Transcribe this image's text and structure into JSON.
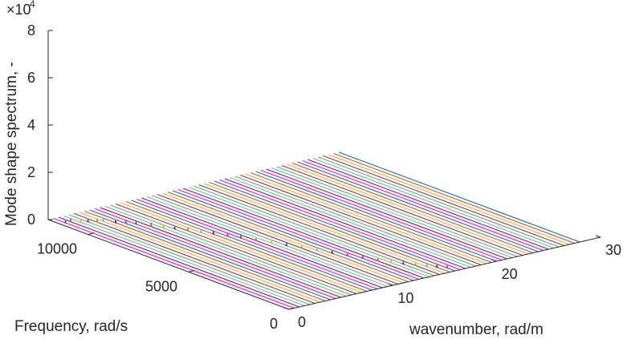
{
  "chart_data": {
    "type": "line",
    "view": "3d-waterfall",
    "exponent_label": "×10",
    "exponent_value": "-4",
    "zlabel": "Mode shape spectrum, -",
    "ylabel": "Frequency, rad/s",
    "xlabel": "wavenumber, rad/m",
    "zlim": [
      0,
      8
    ],
    "ylim": [
      0,
      12000
    ],
    "xlim": [
      0,
      30
    ],
    "z_ticks": [
      "0",
      "2",
      "4",
      "6",
      "8"
    ],
    "y_ticks": [
      "0",
      "5000",
      "10000"
    ],
    "x_ticks": [
      "0",
      "10",
      "20",
      "30"
    ],
    "grid": false,
    "series_note": "spectra at wavenumbers 0.5…28 rad/m",
    "peaks": [
      {
        "k": 0.5,
        "freq": 11400,
        "amp": 0.1
      },
      {
        "k": 1.0,
        "freq": 11400,
        "amp": 0.14
      },
      {
        "k": 1.5,
        "freq": 11150,
        "amp": 0.12
      },
      {
        "k": 2.0,
        "freq": 11050,
        "amp": 0.1
      },
      {
        "k": 2.5,
        "freq": 10850,
        "amp": 0.15
      },
      {
        "k": 3.0,
        "freq": 10800,
        "amp": 0.12
      },
      {
        "k": 3.5,
        "freq": 10450,
        "amp": 0.1
      },
      {
        "k": 4.0,
        "freq": 10200,
        "amp": 0.12
      },
      {
        "k": 4.5,
        "freq": 9950,
        "amp": 0.1
      },
      {
        "k": 5.0,
        "freq": 9450,
        "amp": 0.18
      },
      {
        "k": 5.5,
        "freq": 9100,
        "amp": 0.12
      },
      {
        "k": 6.0,
        "freq": 8800,
        "amp": 0.1
      },
      {
        "k": 6.5,
        "freq": 8400,
        "amp": 0.15
      },
      {
        "k": 7.0,
        "freq": 8000,
        "amp": 0.12
      },
      {
        "k": 7.5,
        "freq": 7650,
        "amp": 0.12
      },
      {
        "k": 8.0,
        "freq": 7200,
        "amp": 0.12
      },
      {
        "k": 8.5,
        "freq": 6800,
        "amp": 0.1
      },
      {
        "k": 9.0,
        "freq": 6300,
        "amp": 0.1
      },
      {
        "k": 9.5,
        "freq": 5800,
        "amp": 0.1
      },
      {
        "k": 10.0,
        "freq": 5300,
        "amp": 0.1
      },
      {
        "k": 10.5,
        "freq": 4800,
        "amp": 0.1
      },
      {
        "k": 11.0,
        "freq": 4300,
        "amp": 0.1
      },
      {
        "k": 11.5,
        "freq": 3800,
        "amp": 0.1
      },
      {
        "k": 12.0,
        "freq": 3300,
        "amp": 0.1
      },
      {
        "k": 12.5,
        "freq": 2800,
        "amp": 0.1
      },
      {
        "k": 13.0,
        "freq": 2300,
        "amp": 0.1
      },
      {
        "k": 13.5,
        "freq": 1900,
        "amp": 0.1
      },
      {
        "k": 14.0,
        "freq": 1550,
        "amp": 0.1
      },
      {
        "k": 14.5,
        "freq": 1200,
        "amp": 0.1
      },
      {
        "k": 15.0,
        "freq": 900,
        "amp": 0.1
      },
      {
        "k": 15.5,
        "freq": 650,
        "amp": 0.1
      },
      {
        "k": 16.0,
        "freq": 400,
        "amp": 0.1
      }
    ],
    "baseline_k": [
      0.5,
      1,
      1.5,
      2,
      2.5,
      3,
      3.5,
      4,
      4.5,
      5,
      5.5,
      6,
      6.5,
      7,
      7.5,
      8,
      8.5,
      9,
      9.5,
      10,
      10.5,
      11,
      11.5,
      12,
      12.5,
      13,
      13.5,
      14,
      14.5,
      15,
      15.5,
      16,
      16.5,
      17,
      17.5,
      18,
      18.5,
      19,
      19.5,
      20,
      20.5,
      21,
      21.5,
      22,
      22.5,
      23,
      23.5,
      24,
      24.5,
      25,
      25.5,
      26,
      26.5,
      27,
      27.5,
      28
    ],
    "colors": [
      "#0072BD",
      "#D95319",
      "#EDB120",
      "#7E2F8E",
      "#77AC30",
      "#4DBEEE",
      "#A2142F",
      "#FF00FF"
    ]
  }
}
